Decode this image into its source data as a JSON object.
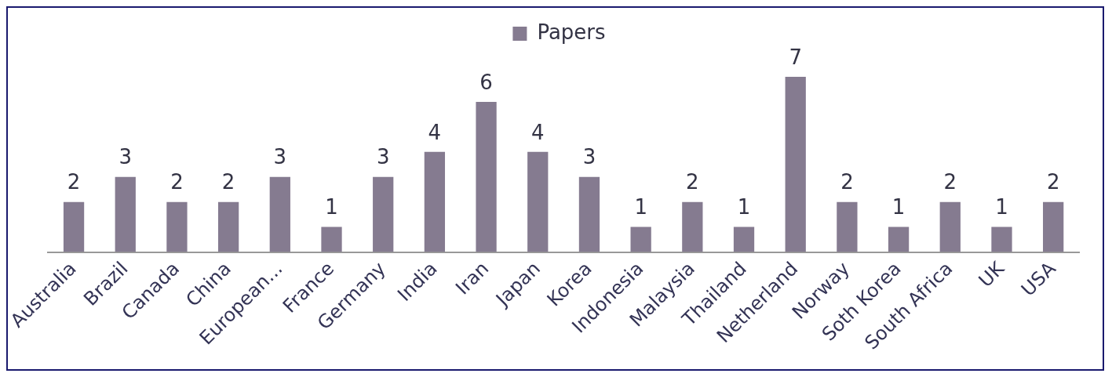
{
  "chart_data": {
    "type": "bar",
    "categories": [
      "Australia",
      "Brazil",
      "Canada",
      "China",
      "European...",
      "France",
      "Germany",
      "India",
      "Iran",
      "Japan",
      "Korea",
      "Indonesia",
      "Malaysia",
      "Thailand",
      "Netherland",
      "Norway",
      "Soth Korea",
      "South Africa",
      "UK",
      "USA"
    ],
    "series": [
      {
        "name": "Papers",
        "color": "#857b90",
        "values": [
          2,
          3,
          2,
          2,
          3,
          1,
          3,
          4,
          6,
          4,
          3,
          1,
          2,
          1,
          7,
          2,
          1,
          2,
          1,
          2
        ]
      }
    ],
    "data_labels": true,
    "legend": "top",
    "grid": false
  }
}
